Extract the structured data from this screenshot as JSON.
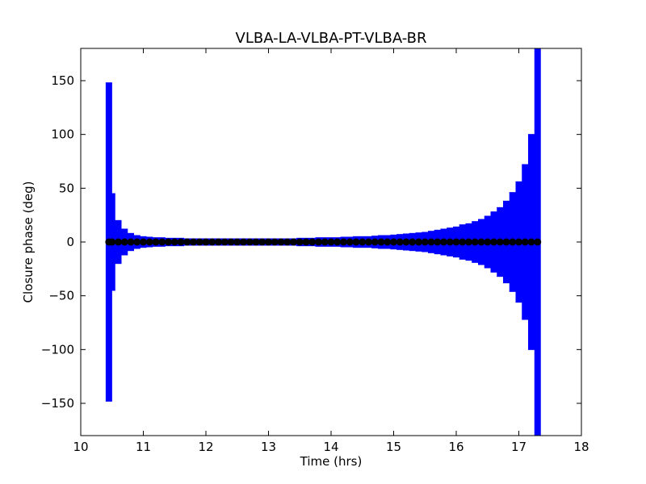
{
  "chart_data": {
    "type": "errorbar",
    "title": "VLBA-LA-VLBA-PT-VLBA-BR",
    "xlabel": "Time (hrs)",
    "ylabel": "Closure phase (deg)",
    "xlim": [
      10,
      18
    ],
    "ylim": [
      -180,
      180
    ],
    "xticks": [
      10,
      11,
      12,
      13,
      14,
      15,
      16,
      17,
      18
    ],
    "yticks": [
      {
        "value": -150,
        "label": "−150"
      },
      {
        "value": -100,
        "label": "−100"
      },
      {
        "value": -50,
        "label": "−50"
      },
      0,
      50,
      100,
      150
    ],
    "grid": false,
    "series": [
      {
        "color": "#0000ff",
        "marker_color": "#000000",
        "x": [
          10.45,
          10.5,
          10.6,
          10.7,
          10.8,
          10.9,
          11.0,
          11.1,
          11.2,
          11.3,
          11.4,
          11.5,
          11.6,
          11.7,
          11.8,
          11.9,
          12.0,
          12.1,
          12.2,
          12.3,
          12.4,
          12.5,
          12.6,
          12.7,
          12.8,
          12.9,
          13.0,
          13.1,
          13.2,
          13.3,
          13.4,
          13.5,
          13.6,
          13.7,
          13.8,
          13.9,
          14.0,
          14.1,
          14.2,
          14.3,
          14.4,
          14.5,
          14.6,
          14.7,
          14.8,
          14.9,
          15.0,
          15.1,
          15.2,
          15.3,
          15.4,
          15.5,
          15.6,
          15.7,
          15.8,
          15.9,
          16.0,
          16.1,
          16.2,
          16.3,
          16.4,
          16.5,
          16.6,
          16.7,
          16.8,
          16.9,
          17.0,
          17.1,
          17.2,
          17.3
        ],
        "values": [
          0,
          0,
          0,
          0,
          0,
          0,
          0,
          0,
          0,
          0,
          0,
          0,
          0,
          0,
          0,
          0,
          0,
          0,
          0,
          0,
          0,
          0,
          0,
          0,
          0,
          0,
          0,
          0,
          0,
          0,
          0,
          0,
          0,
          0,
          0,
          0,
          0,
          0,
          0,
          0,
          0,
          0,
          0,
          0,
          0,
          0,
          0,
          0,
          0,
          0,
          0,
          0,
          0,
          0,
          0,
          0,
          0,
          0,
          0,
          0,
          0,
          0,
          0,
          0,
          0,
          0,
          0,
          0,
          0,
          0
        ],
        "errors": [
          148,
          45,
          20,
          12,
          8,
          6,
          5,
          4.5,
          4,
          4,
          3.5,
          3.5,
          3.5,
          3,
          3,
          3,
          3,
          3,
          3,
          3,
          3,
          3,
          3,
          3,
          3,
          3,
          3,
          3,
          3,
          3,
          3,
          3.5,
          3.5,
          3.5,
          4,
          4,
          4,
          4,
          4.5,
          4.5,
          5,
          5,
          5,
          5.5,
          6,
          6,
          6.5,
          7,
          7.5,
          8,
          8.5,
          9,
          10,
          11,
          12,
          13,
          14,
          16,
          17,
          19,
          21,
          24,
          28,
          32,
          38,
          46,
          56,
          72,
          100,
          200
        ]
      }
    ]
  }
}
